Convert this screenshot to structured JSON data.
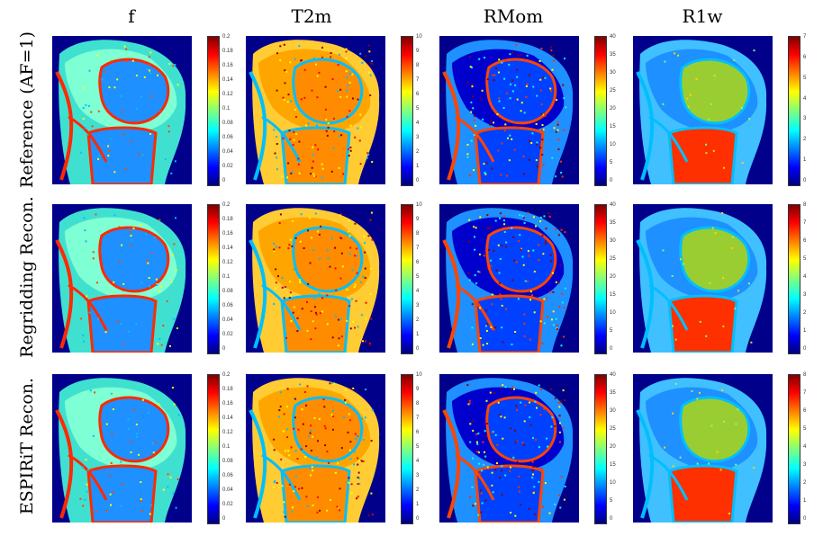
{
  "columns": [
    "f",
    "T2m",
    "RMom",
    "R1w"
  ],
  "rows": [
    "Reference (AF=1)",
    "Regridding Recon.",
    "ESPIRiT Recon."
  ],
  "colorbar_ticks": {
    "f": [
      "0.2",
      "0.18",
      "0.16",
      "0.14",
      "0.12",
      "0.1",
      "0.08",
      "0.06",
      "0.04",
      "0.02",
      "0"
    ],
    "T2m": [
      "10",
      "9",
      "8",
      "7",
      "6",
      "5",
      "4",
      "3",
      "2",
      "1",
      "0"
    ],
    "RMom": [
      "40",
      "35",
      "30",
      "25",
      "20",
      "15",
      "10",
      "5",
      "0"
    ],
    "R1w_ref": [
      "7",
      "6",
      "5",
      "4",
      "3",
      "2",
      "1",
      "0"
    ],
    "R1w": [
      "8",
      "7",
      "6",
      "5",
      "4",
      "3",
      "2",
      "1",
      "0"
    ]
  }
}
